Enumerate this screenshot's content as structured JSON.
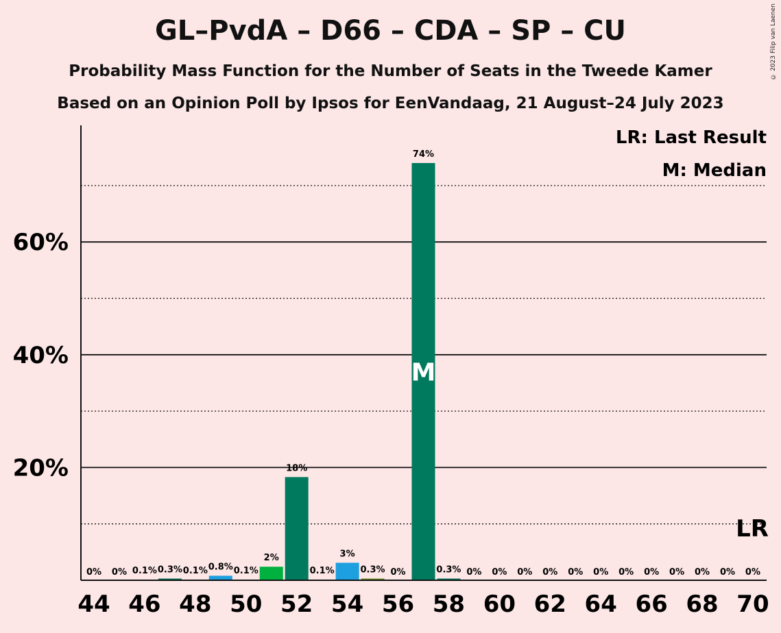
{
  "title": "GL–PvdA – D66 – CDA – SP – CU",
  "subtitle": "Probability Mass Function for the Number of Seats in the Tweede Kamer",
  "subtitle2": "Based on an Opinion Poll by Ipsos for EenVandaag, 21 August–24 July 2023",
  "copyright": "© 2023 Filip van Laenen",
  "legend": {
    "last_result": "LR: Last Result",
    "median": "M: Median"
  },
  "markers": {
    "median_letter": "M",
    "last_result_letter": "LR"
  },
  "colors": {
    "background": "#fce6e6",
    "teal": "#007a5e",
    "green": "#00b140",
    "blue": "#1e9fe0",
    "dark_green": "#2e7d32"
  },
  "chart_data": {
    "type": "bar",
    "title": "GL–PvdA – D66 – CDA – SP – CU",
    "xlabel": "",
    "ylabel": "",
    "ylim": [
      0,
      80
    ],
    "y_ticks": [
      "20%",
      "40%",
      "60%"
    ],
    "y_tick_values": [
      20,
      40,
      60
    ],
    "y_dotted_values": [
      10,
      30,
      50,
      70
    ],
    "x_ticks": [
      "44",
      "46",
      "48",
      "50",
      "52",
      "54",
      "56",
      "58",
      "60",
      "62",
      "64",
      "66",
      "68",
      "70"
    ],
    "median_seat": 57,
    "last_result_seat": 70,
    "categories": [
      44,
      45,
      46,
      47,
      48,
      49,
      50,
      51,
      52,
      53,
      54,
      55,
      56,
      57,
      58,
      59,
      60,
      61,
      62,
      63,
      64,
      65,
      66,
      67,
      68,
      69,
      70
    ],
    "values": [
      0,
      0,
      0.1,
      0.3,
      0.1,
      0.8,
      0.1,
      2.4,
      18.3,
      0.1,
      3.1,
      0.3,
      0,
      74,
      0.3,
      0,
      0,
      0,
      0,
      0,
      0,
      0,
      0,
      0,
      0,
      0,
      0
    ],
    "labels": [
      "0%",
      "0%",
      "0.1%",
      "0.3%",
      "0.1%",
      "0.8%",
      "0.1%",
      "2%",
      "18%",
      "0.1%",
      "3%",
      "0.3%",
      "0%",
      "74%",
      "0.3%",
      "0%",
      "0%",
      "0%",
      "0%",
      "0%",
      "0%",
      "0%",
      "0%",
      "0%",
      "0%",
      "0%",
      "0%"
    ],
    "bar_colors": [
      "#007a5e",
      "#007a5e",
      "#007a5e",
      "#007a5e",
      "#007a5e",
      "#1e9fe0",
      "#007a5e",
      "#00b140",
      "#007a5e",
      "#007a5e",
      "#1e9fe0",
      "#6b8e23",
      "#007a5e",
      "#007a5e",
      "#007a5e",
      "#007a5e",
      "#007a5e",
      "#007a5e",
      "#007a5e",
      "#007a5e",
      "#007a5e",
      "#007a5e",
      "#007a5e",
      "#007a5e",
      "#007a5e",
      "#007a5e",
      "#007a5e"
    ]
  }
}
